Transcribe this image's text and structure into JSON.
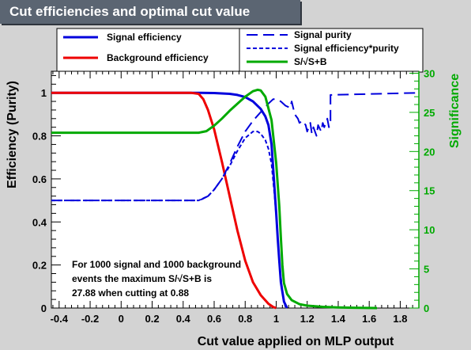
{
  "chart_data": {
    "type": "line",
    "title": "Cut efficiencies and optimal cut value",
    "xlabel": "Cut value applied on MLP output",
    "ylabel": "Efficiency (Purity)",
    "y2label": "Significance",
    "xlim": [
      -0.45,
      1.92
    ],
    "ylim": [
      0,
      1.1
    ],
    "y2lim": [
      0,
      30.25
    ],
    "x_ticks": [
      "-0.4",
      "-0.2",
      "0",
      "0.2",
      "0.4",
      "0.6",
      "0.8",
      "1",
      "1.2",
      "1.4",
      "1.6",
      "1.8"
    ],
    "y_ticks": [
      "0",
      "0.2",
      "0.4",
      "0.6",
      "0.8",
      "1"
    ],
    "y2_ticks": [
      "0",
      "5",
      "10",
      "15",
      "20",
      "25",
      "30"
    ],
    "colors": {
      "signal": "#0000dd",
      "background": "#ee0000",
      "significance": "#00aa00",
      "title_bg": "#5b6572",
      "axis2": "#00aa00"
    },
    "legend": [
      {
        "label": "Signal efficiency",
        "style": "solid",
        "color": "#0000dd"
      },
      {
        "label": "Background efficiency",
        "style": "solid",
        "color": "#ee0000"
      },
      {
        "label": "Signal purity",
        "style": "longdash",
        "color": "#0000dd"
      },
      {
        "label": "Signal efficiency*purity",
        "style": "dash",
        "color": "#0000dd"
      },
      {
        "label": "S/√S+B",
        "style": "solid",
        "color": "#00aa00"
      }
    ],
    "annotation": [
      "For 1000 signal and 1000 background",
      "events the maximum S/√S+B is",
      "27.88 when cutting at  0.88"
    ],
    "series": [
      {
        "name": "Signal efficiency",
        "x": [
          -0.45,
          0.5,
          0.6,
          0.7,
          0.75,
          0.8,
          0.85,
          0.9,
          0.93,
          0.95,
          0.97,
          0.99,
          1.0,
          1.01,
          1.02,
          1.03,
          1.05,
          1.07
        ],
        "y": [
          1.0,
          1.0,
          0.999,
          0.995,
          0.99,
          0.98,
          0.96,
          0.925,
          0.89,
          0.85,
          0.76,
          0.55,
          0.44,
          0.32,
          0.22,
          0.12,
          0.03,
          0.0
        ]
      },
      {
        "name": "Background efficiency",
        "x": [
          -0.45,
          0.45,
          0.5,
          0.53,
          0.56,
          0.6,
          0.65,
          0.7,
          0.75,
          0.8,
          0.85,
          0.9,
          0.95,
          0.98,
          1.0
        ],
        "y": [
          1.0,
          1.0,
          0.995,
          0.97,
          0.92,
          0.83,
          0.68,
          0.52,
          0.36,
          0.22,
          0.12,
          0.06,
          0.02,
          0.005,
          0.0
        ]
      },
      {
        "name": "Signal purity",
        "x": [
          -0.45,
          0.48,
          0.52,
          0.56,
          0.6,
          0.65,
          0.7,
          0.75,
          0.8,
          0.85,
          0.9,
          0.95,
          0.98,
          1.0,
          1.03,
          1.06,
          1.09,
          1.1,
          1.12,
          1.14,
          1.15,
          1.17,
          1.19,
          1.2,
          1.22,
          1.23,
          1.24,
          1.26,
          1.27,
          1.29,
          1.3,
          1.31,
          1.33,
          1.34,
          1.35,
          1.35,
          1.92
        ],
        "y": [
          0.5,
          0.5,
          0.505,
          0.52,
          0.55,
          0.6,
          0.67,
          0.75,
          0.82,
          0.87,
          0.91,
          0.95,
          0.97,
          0.97,
          0.96,
          0.94,
          0.93,
          0.96,
          0.9,
          0.88,
          0.86,
          0.87,
          0.85,
          0.82,
          0.86,
          0.81,
          0.84,
          0.8,
          0.85,
          0.82,
          0.86,
          0.84,
          0.88,
          0.84,
          0.86,
          0.99,
          1.0
        ]
      },
      {
        "name": "Signal efficiency*purity",
        "x": [
          -0.45,
          0.5,
          0.56,
          0.6,
          0.65,
          0.7,
          0.75,
          0.8,
          0.85,
          0.88,
          0.9,
          0.93,
          0.95,
          0.97,
          0.99,
          1.0,
          1.02,
          1.04,
          1.06
        ],
        "y": [
          0.5,
          0.5,
          0.52,
          0.55,
          0.6,
          0.66,
          0.73,
          0.79,
          0.82,
          0.82,
          0.81,
          0.78,
          0.74,
          0.67,
          0.52,
          0.43,
          0.21,
          0.08,
          0.0
        ]
      },
      {
        "name": "S/√S+B",
        "axis": "right",
        "x": [
          -0.45,
          0.5,
          0.55,
          0.6,
          0.65,
          0.7,
          0.75,
          0.8,
          0.85,
          0.88,
          0.9,
          0.93,
          0.97,
          1.0,
          1.02,
          1.03,
          1.04,
          1.05,
          1.07,
          1.1,
          1.15,
          1.2,
          1.3,
          1.4,
          1.5,
          1.6,
          1.65
        ],
        "y": [
          22.4,
          22.4,
          22.6,
          23.3,
          24.2,
          25.2,
          26.1,
          27.0,
          27.7,
          27.88,
          27.8,
          27.0,
          24.0,
          18.5,
          13.0,
          9.0,
          5.5,
          3.2,
          1.8,
          1.0,
          0.5,
          0.3,
          0.15,
          0.08,
          0.04,
          0.01,
          0.0
        ]
      }
    ]
  }
}
